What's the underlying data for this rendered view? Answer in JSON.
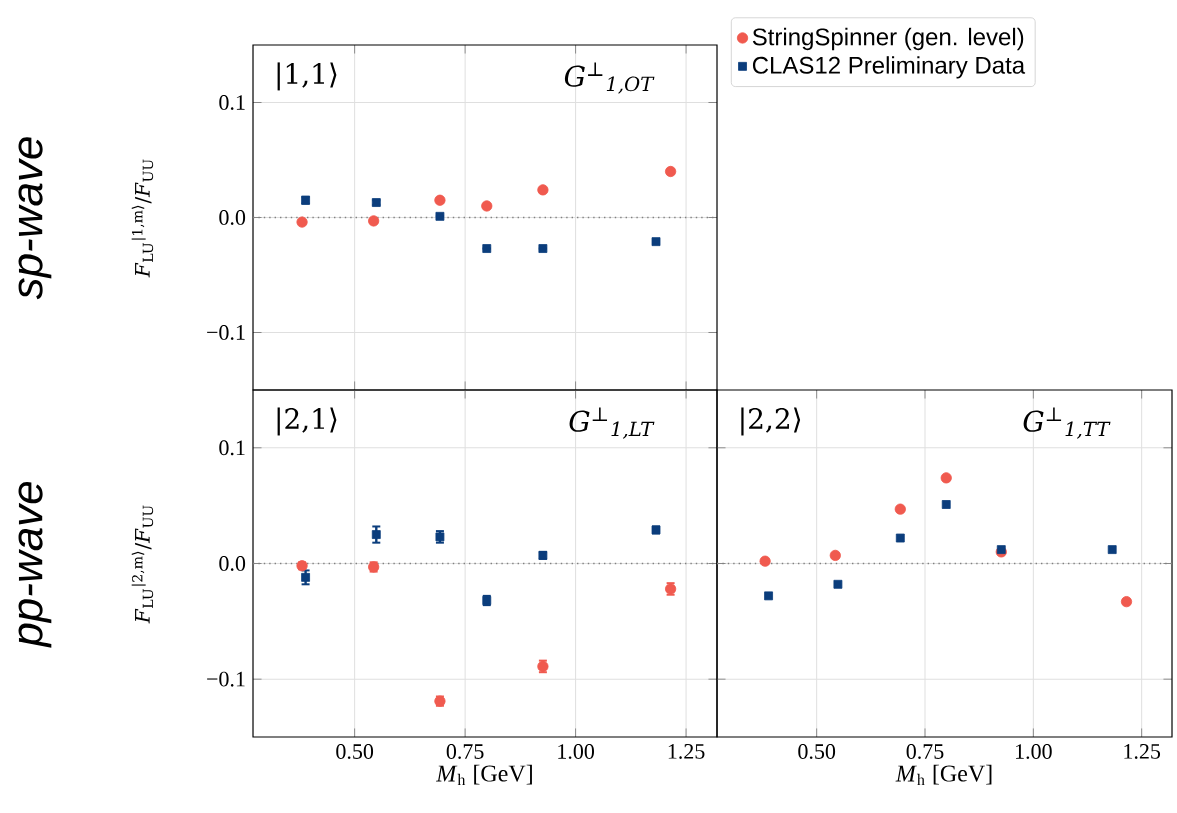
{
  "chart_data": [
    {
      "type": "scatter",
      "ylabel": "*F*$_{LU}$$^{|1,m⟩}$/*F*$_{UU}$",
      "annotations": [
        "|1,1⟩",
        "*G*$^{⊥}$$_{1,OT}$",
        "sp-wave"
      ],
      "xlim": [
        0.27,
        1.32
      ],
      "ylim": [
        -0.15,
        0.15
      ],
      "xticks": [
        0.5,
        0.75,
        1.0,
        1.25
      ],
      "yticks": [
        {
          "value": -0.1,
          "label": "−0.1"
        },
        {
          "value": 0,
          "label": "0.0"
        },
        {
          "value": 0.1,
          "label": "0.1"
        }
      ],
      "tick_labels": "y",
      "grid": true,
      "legend": "top right",
      "ref_lines": [
        {
          "axis": "y",
          "value": 0,
          "color": "#808080",
          "line_style": "dotted"
        }
      ],
      "series": [
        {
          "name": "StringSpinner (gen. level)",
          "color": "#f05a4f",
          "marker": "circle",
          "x": [
            0.381,
            0.543,
            0.693,
            0.799,
            0.926,
            1.215
          ],
          "values": [
            -0.004,
            -0.003,
            0.015,
            0.01,
            0.024,
            0.04
          ]
        },
        {
          "name": "CLAS12 Preliminary Data",
          "color": "#0b3d7c",
          "marker": "square",
          "x": [
            0.389,
            0.549,
            0.693,
            0.799,
            0.926,
            1.182
          ],
          "values": [
            0.015,
            0.013,
            0.001,
            -0.027,
            -0.027,
            -0.021
          ],
          "errors": [
            0.003,
            0.002,
            null,
            null,
            null,
            null
          ]
        }
      ]
    },
    {
      "type": "scatter",
      "ylabel": "*F*$_{LU}$$^{|2,m⟩}$/*F*$_{UU}$",
      "xlabel": "*M*$_{h}$ [GeV]",
      "annotations": [
        "|2,1⟩",
        "*G*$^{⊥}$$_{1,LT}$",
        "pp-wave"
      ],
      "xlim": [
        0.27,
        1.32
      ],
      "ylim": [
        -0.15,
        0.15
      ],
      "xticks": [
        {
          "value": 0.5,
          "label": "0.50"
        },
        {
          "value": 0.75,
          "label": "0.75"
        },
        {
          "value": 1.0,
          "label": "1.00"
        },
        {
          "value": 1.25,
          "label": "1.25"
        }
      ],
      "yticks": [
        {
          "value": -0.1,
          "label": "−0.1"
        },
        {
          "value": 0,
          "label": "0.0"
        },
        {
          "value": 0.1,
          "label": "0.1"
        }
      ],
      "grid": true,
      "ref_lines": [
        {
          "axis": "y",
          "value": 0,
          "color": "#808080",
          "line_style": "dotted"
        }
      ],
      "series": [
        {
          "color": "#f05a4f",
          "marker": "circle",
          "x": [
            0.381,
            0.543,
            0.693,
            0.926,
            1.215
          ],
          "values": [
            -0.002,
            -0.003,
            -0.119,
            -0.089,
            -0.022
          ],
          "errors": [
            0.003,
            0.004,
            0.004,
            0.005,
            0.005
          ]
        },
        {
          "color": "#0b3d7c",
          "marker": "square",
          "x": [
            0.389,
            0.549,
            0.693,
            0.799,
            0.926,
            1.182
          ],
          "values": [
            -0.012,
            0.025,
            0.023,
            -0.032,
            0.007,
            0.029
          ],
          "errors": [
            0.006,
            0.007,
            0.005,
            0.004,
            0.003,
            0.003
          ]
        }
      ]
    },
    {
      "type": "scatter",
      "xlabel": "*M*$_{h}$ [GeV]",
      "annotations": [
        "|2,2⟩",
        "*G*$^{⊥}$$_{1,TT}$"
      ],
      "xlim": [
        0.27,
        1.32
      ],
      "ylim": [
        -0.15,
        0.15
      ],
      "xticks": [
        {
          "value": 0.5,
          "label": "0.50"
        },
        {
          "value": 0.75,
          "label": "0.75"
        },
        {
          "value": 1.0,
          "label": "1.00"
        },
        {
          "value": 1.25,
          "label": "1.25"
        }
      ],
      "yticks": [
        -0.1,
        0,
        0.1
      ],
      "tick_labels": "x",
      "grid": true,
      "ref_lines": [
        {
          "axis": "y",
          "value": 0,
          "color": "#808080",
          "line_style": "dotted"
        }
      ],
      "series": [
        {
          "color": "#f05a4f",
          "marker": "circle",
          "x": [
            0.381,
            0.543,
            0.693,
            0.799,
            0.926,
            1.215
          ],
          "values": [
            0.002,
            0.007,
            0.047,
            0.074,
            0.01,
            -0.033
          ]
        },
        {
          "color": "#0b3d7c",
          "marker": "square",
          "x": [
            0.389,
            0.549,
            0.693,
            0.799,
            0.926,
            1.182
          ],
          "values": [
            -0.028,
            -0.018,
            0.022,
            0.051,
            0.012,
            0.012
          ]
        }
      ]
    }
  ]
}
